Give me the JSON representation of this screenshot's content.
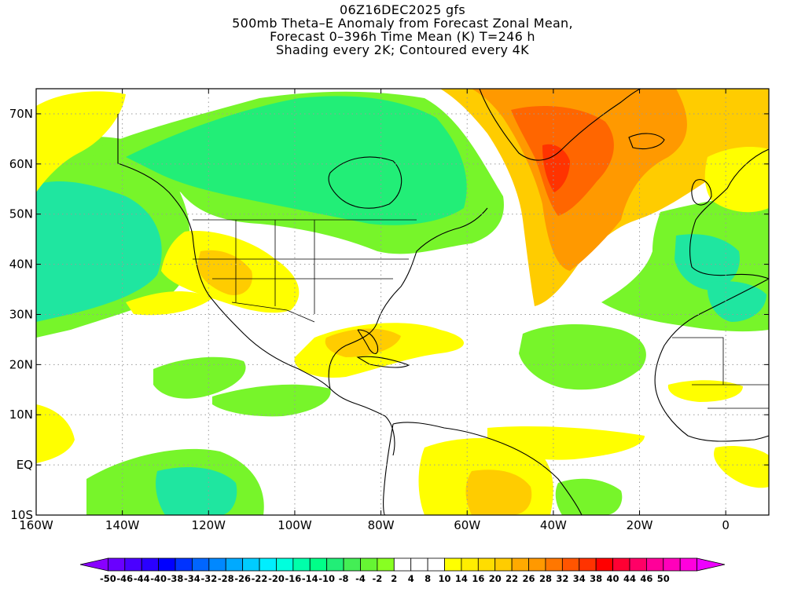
{
  "title": {
    "line1": "06Z16DEC2025 gfs",
    "line2": "500mb Theta–E Anomaly from Forecast Zonal Mean,",
    "line3": "Forecast 0–396h Time Mean (K) T=246 h",
    "line4": "Shading every 2K; Contoured every 4K"
  },
  "map": {
    "lon_range": [
      -160,
      10
    ],
    "lat_range": [
      -10,
      75
    ],
    "lat_ticks": [
      {
        "value": 70,
        "label": "70N"
      },
      {
        "value": 60,
        "label": "60N"
      },
      {
        "value": 50,
        "label": "50N"
      },
      {
        "value": 40,
        "label": "40N"
      },
      {
        "value": 30,
        "label": "30N"
      },
      {
        "value": 20,
        "label": "20N"
      },
      {
        "value": 10,
        "label": "10N"
      },
      {
        "value": 0,
        "label": "EQ"
      },
      {
        "value": -10,
        "label": "10S"
      }
    ],
    "lon_ticks": [
      {
        "value": -160,
        "label": "160W"
      },
      {
        "value": -140,
        "label": "140W"
      },
      {
        "value": -120,
        "label": "120W"
      },
      {
        "value": -100,
        "label": "100W"
      },
      {
        "value": -80,
        "label": "80W"
      },
      {
        "value": -60,
        "label": "60W"
      },
      {
        "value": -40,
        "label": "40W"
      },
      {
        "value": -20,
        "label": "20W"
      },
      {
        "value": 0,
        "label": "0"
      }
    ],
    "grid": true,
    "colors": {
      "green_mid": "#77f52a",
      "green_cool": "#22ee77",
      "teal": "#1fe6a0",
      "yellow": "#ffff00",
      "gold": "#ffcc00",
      "orange": "#ff9900",
      "orange_red": "#ff6600",
      "red": "#ff3300",
      "coast": "#000000"
    }
  },
  "colorbar": {
    "colors": [
      "#8800ff",
      "#6a00ff",
      "#4a00ff",
      "#2a00ff",
      "#0000ff",
      "#0033ff",
      "#0066ff",
      "#0088ff",
      "#00aaff",
      "#00ccff",
      "#00eeff",
      "#00ffdd",
      "#00ffaa",
      "#00ff88",
      "#22ee77",
      "#44ee55",
      "#66f533",
      "#88ff22",
      "#ffffff",
      "#ffffff",
      "#ffffff",
      "#ffff00",
      "#ffee00",
      "#ffdd00",
      "#ffcc00",
      "#ffaa00",
      "#ff9900",
      "#ff7700",
      "#ff5500",
      "#ff3300",
      "#ff0000",
      "#ff0033",
      "#ff0066",
      "#ff0099",
      "#ff00bb",
      "#ff00dd",
      "#ee00ff"
    ],
    "labels": [
      "-50",
      "-46",
      "-44",
      "-40",
      "-38",
      "-34",
      "-32",
      "-28",
      "-26",
      "-22",
      "-20",
      "-16",
      "-14",
      "-10",
      "-8",
      "-4",
      "-2",
      "2",
      "4",
      "8",
      "10",
      "14",
      "16",
      "20",
      "22",
      "26",
      "28",
      "32",
      "34",
      "38",
      "40",
      "44",
      "46",
      "50"
    ]
  }
}
